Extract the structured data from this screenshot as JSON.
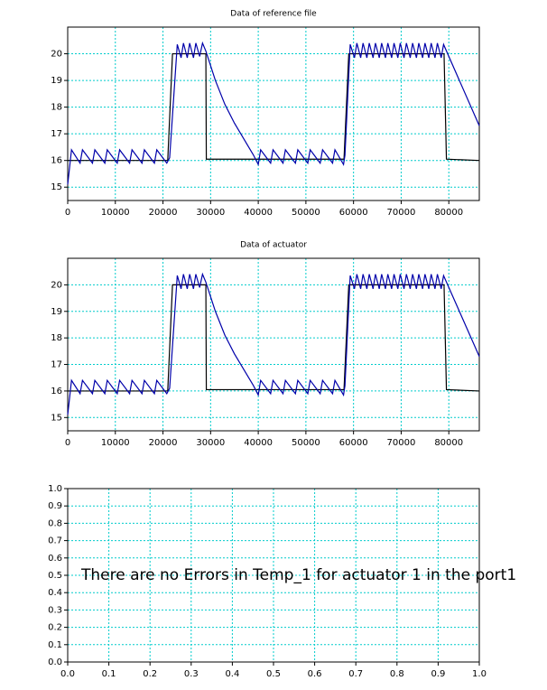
{
  "chart_data": [
    {
      "type": "line",
      "title": "Data of reference file",
      "xlim": [
        0,
        86400
      ],
      "ylim": [
        14.5,
        21
      ],
      "xticks": [
        0,
        10000,
        20000,
        30000,
        40000,
        50000,
        60000,
        70000,
        80000
      ],
      "yticks": [
        15,
        16,
        17,
        18,
        19,
        20
      ],
      "grid": true,
      "series": [
        {
          "color": "#000000",
          "x": [
            0,
            21000,
            22000,
            29000,
            29100,
            58000,
            59000,
            79000,
            79500,
            86400
          ],
          "values": [
            16,
            16,
            20,
            20,
            16.05,
            16.05,
            20,
            20,
            16.05,
            16.0
          ]
        },
        {
          "color": "#0000aa",
          "x": [
            0,
            800,
            2600,
            3100,
            5200,
            5700,
            7800,
            8300,
            10400,
            10900,
            13000,
            13500,
            15600,
            16100,
            18200,
            18700,
            20800,
            21400,
            23000,
            23800,
            24300,
            25100,
            25600,
            26400,
            26900,
            27700,
            28300,
            29000,
            31000,
            33000,
            35000,
            37000,
            39000,
            40000,
            40500,
            42600,
            43100,
            45200,
            45700,
            47800,
            48300,
            50400,
            50900,
            53000,
            53500,
            55600,
            56100,
            57900,
            58200,
            59300,
            60200,
            60700,
            61500,
            62000,
            62800,
            63300,
            64100,
            64600,
            65400,
            65900,
            66700,
            67200,
            68000,
            68500,
            69300,
            69800,
            70600,
            71100,
            71900,
            72400,
            73200,
            73700,
            74500,
            75000,
            75800,
            76300,
            77100,
            77600,
            78400,
            78900,
            86400
          ],
          "values": [
            15.1,
            16.4,
            15.9,
            16.4,
            15.9,
            16.4,
            15.9,
            16.4,
            15.9,
            16.4,
            15.9,
            16.4,
            15.9,
            16.4,
            15.9,
            16.4,
            15.9,
            16.1,
            20.35,
            19.85,
            20.4,
            19.85,
            20.4,
            19.85,
            20.4,
            19.9,
            20.4,
            20.1,
            19.0,
            18.1,
            17.4,
            16.8,
            16.2,
            15.85,
            16.4,
            15.9,
            16.4,
            15.9,
            16.4,
            15.9,
            16.4,
            15.9,
            16.4,
            15.9,
            16.4,
            15.9,
            16.4,
            15.85,
            16.2,
            20.35,
            19.85,
            20.4,
            19.85,
            20.4,
            19.85,
            20.4,
            19.85,
            20.4,
            19.85,
            20.4,
            19.85,
            20.4,
            19.85,
            20.4,
            19.85,
            20.4,
            19.85,
            20.4,
            19.85,
            20.4,
            19.85,
            20.4,
            19.85,
            20.4,
            19.85,
            20.4,
            19.85,
            20.4,
            19.85,
            20.35,
            17.3
          ]
        }
      ]
    },
    {
      "type": "line",
      "title": "Data of actuator",
      "xlim": [
        0,
        86400
      ],
      "ylim": [
        14.5,
        21
      ],
      "xticks": [
        0,
        10000,
        20000,
        30000,
        40000,
        50000,
        60000,
        70000,
        80000
      ],
      "yticks": [
        15,
        16,
        17,
        18,
        19,
        20
      ],
      "grid": true,
      "series": [
        {
          "color": "#000000",
          "x": [
            0,
            21000,
            22000,
            29000,
            29100,
            58000,
            59000,
            79000,
            79500,
            86400
          ],
          "values": [
            16,
            16,
            20,
            20,
            16.05,
            16.05,
            20,
            20,
            16.05,
            16.0
          ]
        },
        {
          "color": "#0000aa",
          "x": [
            0,
            800,
            2600,
            3100,
            5200,
            5700,
            7800,
            8300,
            10400,
            10900,
            13000,
            13500,
            15600,
            16100,
            18200,
            18700,
            20800,
            21400,
            23000,
            23800,
            24300,
            25100,
            25600,
            26400,
            26900,
            27700,
            28300,
            29000,
            31000,
            33000,
            35000,
            37000,
            39000,
            40000,
            40500,
            42600,
            43100,
            45200,
            45700,
            47800,
            48300,
            50400,
            50900,
            53000,
            53500,
            55600,
            56100,
            57900,
            58200,
            59300,
            60200,
            60700,
            61500,
            62000,
            62800,
            63300,
            64100,
            64600,
            65400,
            65900,
            66700,
            67200,
            68000,
            68500,
            69300,
            69800,
            70600,
            71100,
            71900,
            72400,
            73200,
            73700,
            74500,
            75000,
            75800,
            76300,
            77100,
            77600,
            78400,
            78900,
            86400
          ],
          "values": [
            15.1,
            16.4,
            15.9,
            16.4,
            15.9,
            16.4,
            15.9,
            16.4,
            15.9,
            16.4,
            15.9,
            16.4,
            15.9,
            16.4,
            15.9,
            16.4,
            15.9,
            16.1,
            20.35,
            19.85,
            20.4,
            19.85,
            20.4,
            19.85,
            20.4,
            19.9,
            20.4,
            20.1,
            19.0,
            18.1,
            17.4,
            16.8,
            16.2,
            15.85,
            16.4,
            15.9,
            16.4,
            15.9,
            16.4,
            15.9,
            16.4,
            15.9,
            16.4,
            15.9,
            16.4,
            15.9,
            16.4,
            15.85,
            16.2,
            20.35,
            19.85,
            20.4,
            19.85,
            20.4,
            19.85,
            20.4,
            19.85,
            20.4,
            19.85,
            20.4,
            19.85,
            20.4,
            19.85,
            20.4,
            19.85,
            20.4,
            19.85,
            20.4,
            19.85,
            20.4,
            19.85,
            20.4,
            19.85,
            20.4,
            19.85,
            20.4,
            19.85,
            20.4,
            19.85,
            20.35,
            17.3
          ]
        }
      ]
    },
    {
      "type": "line",
      "annotation": "There are no Errors in Temp_1 for actuator 1 in the port1",
      "xlim": [
        0,
        1
      ],
      "ylim": [
        0,
        1
      ],
      "xticks": [
        {
          "value": 0,
          "label": "0.0"
        },
        0.1,
        0.2,
        0.3,
        0.4,
        0.5,
        0.6,
        0.7,
        0.8,
        0.9,
        {
          "value": 1,
          "label": "1.0"
        }
      ],
      "yticks": [
        {
          "value": 0,
          "label": "0.0"
        },
        0.1,
        0.2,
        0.3,
        0.4,
        0.5,
        0.6,
        0.7,
        0.8,
        0.9,
        {
          "value": 1,
          "label": "1.0"
        }
      ],
      "grid": true,
      "series": []
    }
  ]
}
